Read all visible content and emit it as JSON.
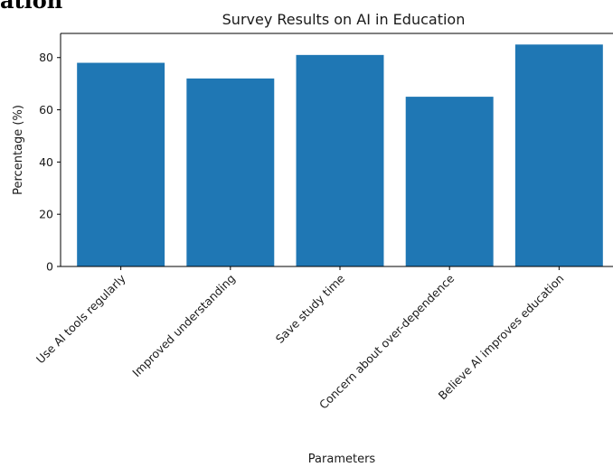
{
  "page_fragment": "ation",
  "chart_data": {
    "type": "bar",
    "title": "Survey Results on AI in Education",
    "xlabel": "Parameters",
    "ylabel": "Percentage (%)",
    "categories": [
      "Use AI tools regularly",
      "Improved understanding",
      "Save study time",
      "Concern about over-dependence",
      "Believe AI improves education"
    ],
    "values": [
      78,
      72,
      81,
      65,
      85
    ],
    "ylim": [
      0,
      89.25
    ],
    "yticks": [
      0,
      20,
      40,
      60,
      80
    ],
    "bar_color": "#1f77b4",
    "grid": false,
    "legend": "none"
  }
}
